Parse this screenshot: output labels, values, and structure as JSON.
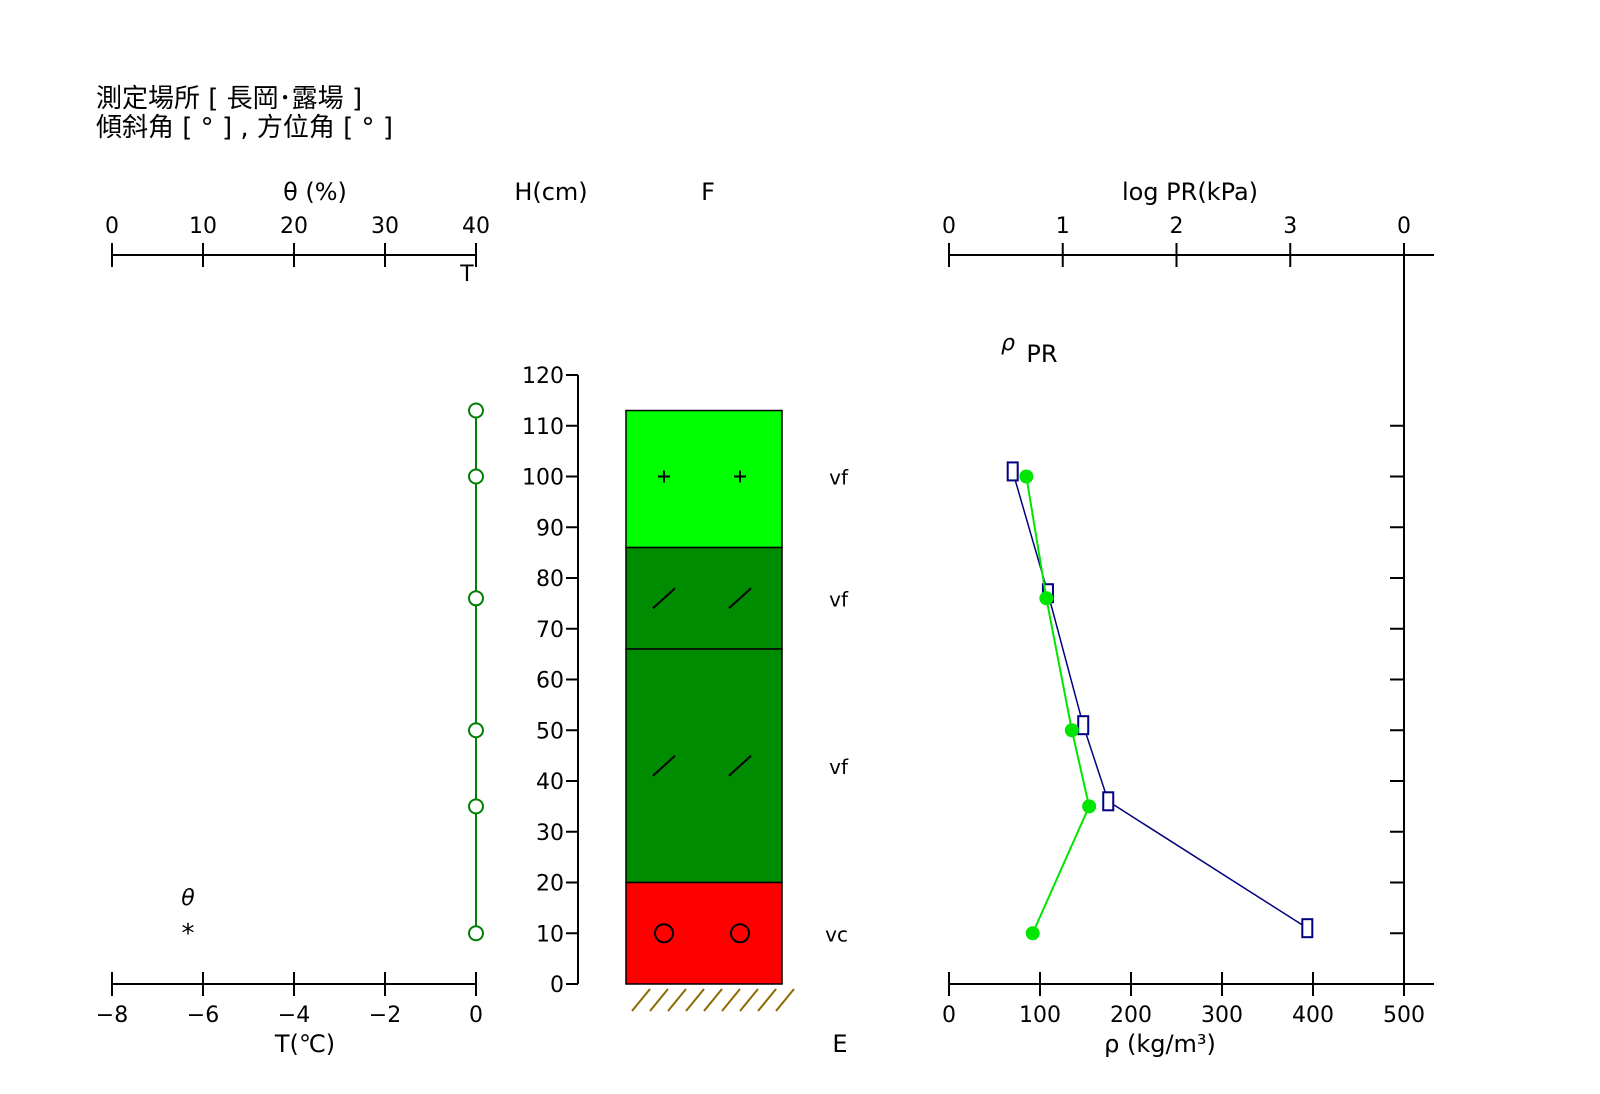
{
  "header": {
    "site": "測定場所 [ 長岡･露場 ]",
    "slope": "傾斜角 [ ° ] , 方位角 [ ° ]"
  },
  "colors": {
    "theta_line": "#008000",
    "temperature_marker": "#000000",
    "density_line": "#00e600",
    "pr_line": "#000080",
    "layer_light_green": "#00ff00",
    "layer_dark_green": "#008c00",
    "layer_red": "#ff0000",
    "ground_hatch": "#8b6b00"
  },
  "chart_data": {
    "type": "snow_profile",
    "height_axis": {
      "label": "H(cm)",
      "range": [
        0,
        120
      ],
      "ticks": [
        "0",
        "10",
        "20",
        "30",
        "40",
        "50",
        "60",
        "70",
        "80",
        "90",
        "100",
        "110",
        "120"
      ]
    },
    "theta_panel": {
      "top_axis_label": "θ (%)",
      "top_ticks": [
        "0",
        "10",
        "20",
        "30",
        "40"
      ],
      "range": [
        0,
        40
      ],
      "bottom_axis_label": "T(℃)",
      "bottom_ticks": [
        "−8",
        "−6",
        "−4",
        "−2",
        "0"
      ],
      "temperature_range": [
        -8,
        0
      ],
      "temperature_legend_label": "T",
      "theta_legend_label": "θ",
      "theta_legend_symbol": "*",
      "temperature_series": {
        "name": "T",
        "marker": "open-circle",
        "points": [
          {
            "h": 113,
            "t": 0
          },
          {
            "h": 100,
            "t": 0
          },
          {
            "h": 76,
            "t": 0
          },
          {
            "h": 50,
            "t": 0
          },
          {
            "h": 35,
            "t": 0
          },
          {
            "h": 10,
            "t": 0
          }
        ]
      }
    },
    "stratigraphy": {
      "top_label": "F",
      "bottom_label": "E",
      "layers": [
        {
          "from": 86,
          "to": 113,
          "color": "#00ff00",
          "symbol": "+",
          "hardness": "vf",
          "hardness_h": 100
        },
        {
          "from": 66,
          "to": 86,
          "color": "#008c00",
          "symbol": "/",
          "hardness": "vf",
          "hardness_h": 76
        },
        {
          "from": 20,
          "to": 66,
          "color": "#008c00",
          "symbol": "/",
          "hardness": "vf",
          "hardness_h": 43
        },
        {
          "from": 0,
          "to": 20,
          "color": "#ff0000",
          "symbol": "○",
          "hardness": "vc",
          "hardness_h": 10
        }
      ],
      "symbol_rows": [
        {
          "h": 100,
          "symbol": "+"
        },
        {
          "h": 76,
          "symbol": "/"
        },
        {
          "h": 43,
          "symbol": "/"
        },
        {
          "h": 10,
          "symbol": "○"
        }
      ]
    },
    "density_panel": {
      "top_axis_label": "log PR(kPa)",
      "top_ticks": [
        "0",
        "1",
        "2",
        "3",
        "0"
      ],
      "log_pr_range": [
        0,
        4
      ],
      "bottom_axis_label": "ρ (kg/m³)",
      "bottom_ticks": [
        "0",
        "100",
        "200",
        "300",
        "400",
        "500"
      ],
      "density_range": [
        0,
        500
      ],
      "legend_rho": "ρ",
      "legend_pr": "PR",
      "density_series": {
        "name": "ρ",
        "marker": "filled-circle",
        "points": [
          {
            "h": 100,
            "rho": 85
          },
          {
            "h": 76,
            "rho": 107
          },
          {
            "h": 50,
            "rho": 135
          },
          {
            "h": 35,
            "rho": 154
          },
          {
            "h": 10,
            "rho": 92
          }
        ]
      },
      "pr_series": {
        "name": "PR",
        "marker": "open-square",
        "points": [
          {
            "h": 101,
            "log_pr": 0.56
          },
          {
            "h": 77,
            "log_pr": 0.87
          },
          {
            "h": 51,
            "log_pr": 1.18
          },
          {
            "h": 36,
            "log_pr": 1.4
          },
          {
            "h": 11,
            "log_pr": 3.15
          }
        ]
      }
    }
  }
}
